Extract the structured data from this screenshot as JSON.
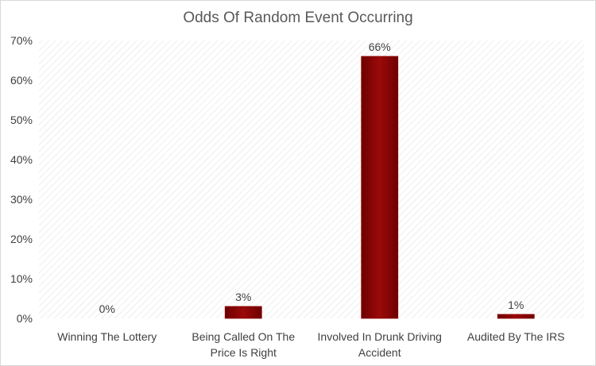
{
  "chart_data": {
    "type": "bar",
    "title": "Odds Of Random Event Occurring",
    "xlabel": "",
    "ylabel": "",
    "categories": [
      [
        "Winning The Lottery"
      ],
      [
        "Being Called On The",
        "Price Is Right"
      ],
      [
        "Involved In Drunk Driving",
        "Accident"
      ],
      [
        "Audited By The IRS"
      ]
    ],
    "values": [
      0,
      3,
      66,
      1
    ],
    "data_labels": [
      "0%",
      "3%",
      "66%",
      "1%"
    ],
    "ylim": [
      0,
      70
    ],
    "yticks": [
      "0%",
      "10%",
      "20%",
      "30%",
      "40%",
      "50%",
      "60%",
      "70%"
    ],
    "bar_color": "#8b0000",
    "grid": false,
    "legend": "none",
    "background": "diagonal-hatch"
  }
}
